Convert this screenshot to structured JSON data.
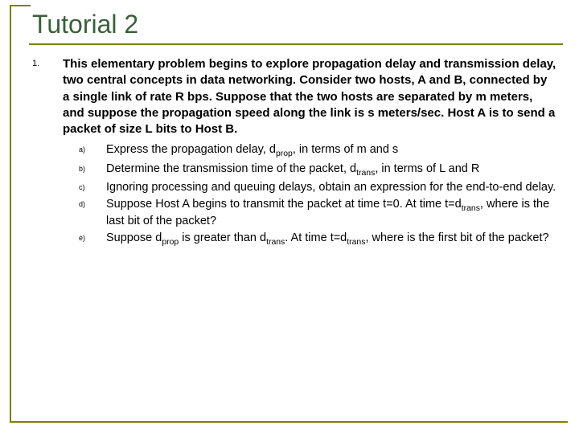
{
  "colors": {
    "accent": "#808000",
    "title": "#3a5f3a",
    "text": "#000000",
    "background": "#ffffff"
  },
  "title": "Tutorial 2",
  "question": {
    "number": "1.",
    "text_html": "This elementary problem begins to explore propagation delay and transmission delay, two central concepts in data networking.  Consider two hosts, A and B, connected by a single link of rate R bps.  Suppose that the two hosts are separated by m meters, and suppose the propagation speed along the link is s meters/sec.  Host A is to send a packet of size L bits to Host B."
  },
  "subparts": [
    {
      "label": "a)",
      "html": "Express the propagation delay, d<sub>prop</sub>, in terms of m and s"
    },
    {
      "label": "b)",
      "html": "Determine the transmission time of the packet, d<sub>trans</sub>, in terms of L and R"
    },
    {
      "label": "c)",
      "html": "Ignoring processing and queuing delays, obtain an expression for the end-to-end delay."
    },
    {
      "label": "d)",
      "html": "Suppose Host A begins to transmit the packet at time t=0.  At time t=d<sub>trans</sub>, where is the last bit of the packet?"
    },
    {
      "label": "e)",
      "html": "Suppose d<sub>prop</sub> is greater than d<sub>trans</sub>.  At time t=d<sub>trans</sub>, where is the first bit of the packet?"
    }
  ]
}
